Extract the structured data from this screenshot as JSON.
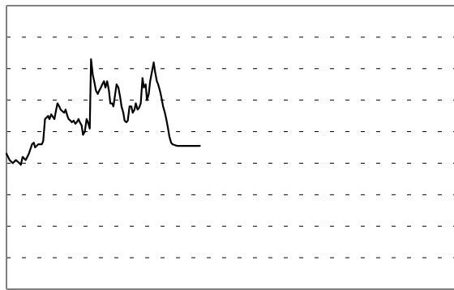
{
  "chart_data": {
    "type": "line",
    "title": "",
    "xlabel": "",
    "ylabel": "",
    "grid": true,
    "grid_style": "dashed horizontal",
    "ylim": [
      0,
      9
    ],
    "xlim": [
      0,
      100
    ],
    "colors": {
      "line": "#000000",
      "grid": "#000000",
      "axis": "#808080",
      "background": "#ffffff"
    },
    "series": [
      {
        "x": [
          0,
          0.7,
          1.4,
          2.1,
          2.9,
          3.2,
          3.6,
          4.3,
          5.0,
          5.7,
          6.1,
          6.4,
          7.1,
          7.9,
          8.2,
          8.6,
          9.3,
          9.6,
          10.0,
          10.7,
          11.1,
          11.4,
          11.8,
          12.1,
          12.5,
          12.9,
          13.2,
          13.6,
          13.9,
          14.3,
          14.6,
          15.0,
          15.4,
          15.7,
          16.1,
          16.4,
          16.8,
          17.1,
          17.5,
          17.9,
          18.2,
          18.6,
          18.9,
          19.3,
          19.6,
          20.0,
          20.4,
          20.7,
          21.1,
          21.4,
          21.8,
          22.1,
          22.5,
          22.9,
          23.2,
          23.6,
          23.9,
          24.3,
          24.6,
          25.0,
          25.4,
          25.7,
          26.1,
          26.4,
          26.8,
          27.1,
          27.5,
          27.9,
          28.2,
          28.6,
          28.9,
          29.3,
          29.6,
          30.0,
          30.4,
          30.7,
          31.1,
          31.4,
          31.8,
          32.1,
          32.5,
          32.9,
          33.2,
          33.6,
          33.9,
          34.3,
          34.6,
          35.0,
          35.4,
          35.7,
          36.1,
          36.4,
          36.8,
          37.1,
          37.5,
          37.9,
          38.2,
          38.6,
          38.9,
          39.3,
          39.6,
          40.0,
          40.4,
          40.7,
          41.1,
          41.4,
          41.8,
          42.1,
          42.5,
          42.9,
          43.2
        ],
        "y": [
          4.3,
          4.1,
          4.0,
          4.1,
          4.0,
          3.95,
          4.2,
          4.1,
          4.3,
          4.6,
          4.65,
          4.5,
          4.6,
          4.6,
          4.7,
          5.4,
          5.5,
          5.4,
          5.55,
          5.4,
          5.7,
          5.9,
          5.8,
          5.7,
          5.65,
          5.6,
          5.7,
          5.5,
          5.4,
          5.35,
          5.3,
          5.35,
          5.25,
          5.3,
          5.4,
          5.3,
          5.2,
          4.9,
          5.0,
          5.4,
          5.3,
          5.1,
          7.3,
          6.8,
          6.6,
          6.3,
          6.2,
          6.3,
          6.4,
          6.5,
          6.6,
          6.4,
          6.6,
          6.3,
          5.9,
          5.9,
          5.8,
          6.2,
          6.5,
          6.4,
          6.1,
          5.8,
          5.6,
          5.35,
          5.3,
          5.35,
          5.8,
          5.8,
          5.6,
          5.7,
          5.9,
          5.7,
          5.75,
          5.9,
          6.7,
          6.4,
          6.5,
          6.0,
          6.2,
          6.6,
          6.9,
          7.2,
          6.9,
          6.6,
          6.5,
          6.3,
          6.1,
          5.8,
          5.6,
          5.4,
          5.1,
          4.85,
          4.65,
          4.6,
          4.58,
          4.56,
          4.55,
          4.55,
          4.55,
          4.55,
          4.55,
          4.55,
          4.55,
          4.55,
          4.55,
          4.55,
          4.55,
          4.55,
          4.55,
          4.55,
          4.55
        ]
      }
    ]
  }
}
